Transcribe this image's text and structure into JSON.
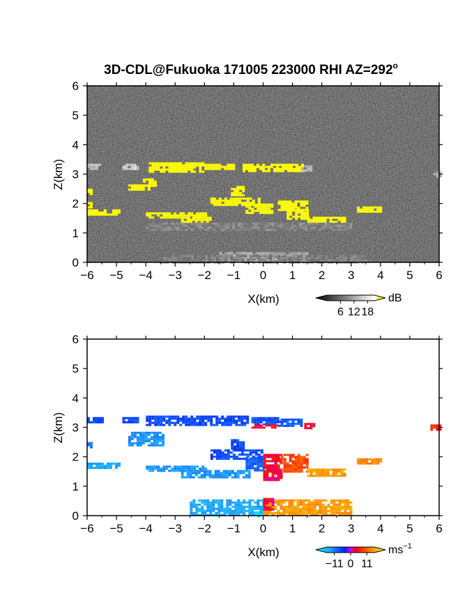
{
  "title": "3D-CDL@Fukuoka 171005 223000 RHI AZ=292",
  "title_degree_symbol": "o",
  "chart_data": [
    {
      "type": "heatmap",
      "name": "reflectivity",
      "xlabel": "X(km)",
      "ylabel": "Z(km)",
      "xlim": [
        -6,
        6
      ],
      "ylim": [
        0,
        6
      ],
      "x_ticks": [
        "-6",
        "-5",
        "-4",
        "-3",
        "-2",
        "-1",
        "0",
        "1",
        "2",
        "3",
        "4",
        "5",
        "6"
      ],
      "y_ticks": [
        "0",
        "1",
        "2",
        "3",
        "4",
        "5",
        "6"
      ],
      "colorbar": {
        "unit": "dB",
        "ticks": [
          6,
          12,
          18
        ],
        "tick_labels": [
          "6",
          "12",
          "18"
        ],
        "range": [
          0,
          21
        ]
      },
      "background_value_db": 3,
      "features": [
        {
          "x": [
            -6.0,
            -5.6
          ],
          "z": [
            3.15,
            3.35
          ],
          "value_db": 14
        },
        {
          "x": [
            -4.8,
            -4.3
          ],
          "z": [
            3.15,
            3.35
          ],
          "value_db": 16
        },
        {
          "x": [
            -3.9,
            -2.0
          ],
          "z": [
            3.1,
            3.4
          ],
          "value_db": 20
        },
        {
          "x": [
            -2.0,
            -1.0
          ],
          "z": [
            3.15,
            3.35
          ],
          "value_db": 20
        },
        {
          "x": [
            -0.7,
            1.3
          ],
          "z": [
            3.1,
            3.35
          ],
          "value_db": 20
        },
        {
          "x": [
            1.3,
            1.6
          ],
          "z": [
            3.15,
            3.3
          ],
          "value_db": 14
        },
        {
          "x": [
            -4.6,
            -3.9
          ],
          "z": [
            2.45,
            2.65
          ],
          "value_db": 20
        },
        {
          "x": [
            -4.1,
            -3.7
          ],
          "z": [
            2.6,
            2.85
          ],
          "value_db": 20
        },
        {
          "x": [
            -6.0,
            -5.9
          ],
          "z": [
            2.3,
            2.5
          ],
          "value_db": 20
        },
        {
          "x": [
            -6.0,
            -5.9
          ],
          "z": [
            1.85,
            2.05
          ],
          "value_db": 20
        },
        {
          "x": [
            -1.1,
            -0.7
          ],
          "z": [
            2.3,
            2.6
          ],
          "value_db": 20
        },
        {
          "x": [
            -1.8,
            -0.1
          ],
          "z": [
            1.95,
            2.2
          ],
          "value_db": 20
        },
        {
          "x": [
            -0.6,
            0.3
          ],
          "z": [
            1.7,
            2.0
          ],
          "value_db": 20
        },
        {
          "x": [
            0.5,
            1.5
          ],
          "z": [
            1.8,
            2.1
          ],
          "value_db": 20
        },
        {
          "x": [
            0.8,
            1.5
          ],
          "z": [
            1.45,
            1.8
          ],
          "value_db": 20
        },
        {
          "x": [
            1.5,
            2.8
          ],
          "z": [
            1.35,
            1.55
          ],
          "value_db": 20
        },
        {
          "x": [
            -6.0,
            -4.9
          ],
          "z": [
            1.6,
            1.8
          ],
          "value_db": 20
        },
        {
          "x": [
            -4.0,
            -2.0
          ],
          "z": [
            1.5,
            1.7
          ],
          "value_db": 20
        },
        {
          "x": [
            -2.8,
            -1.8
          ],
          "z": [
            1.35,
            1.55
          ],
          "value_db": 20
        },
        {
          "x": [
            3.2,
            4.0
          ],
          "z": [
            1.75,
            1.9
          ],
          "value_db": 20
        },
        {
          "x": [
            5.8,
            6.0
          ],
          "z": [
            2.95,
            3.1
          ],
          "value_db": 12
        },
        {
          "x": [
            -4.0,
            3.0
          ],
          "z": [
            1.1,
            1.35
          ],
          "value_db": 9
        },
        {
          "x": [
            -1.5,
            1.5
          ],
          "z": [
            0.0,
            0.35
          ],
          "value_db": 12
        },
        {
          "x": [
            -3.5,
            3.5
          ],
          "z": [
            0.0,
            0.25
          ],
          "value_db": 8
        }
      ]
    },
    {
      "type": "heatmap",
      "name": "doppler_velocity",
      "xlabel": "X(km)",
      "ylabel": "Z(km)",
      "xlim": [
        -6,
        6
      ],
      "ylim": [
        0,
        6
      ],
      "x_ticks": [
        "-6",
        "-5",
        "-4",
        "-3",
        "-2",
        "-1",
        "0",
        "1",
        "2",
        "3",
        "4",
        "5",
        "6"
      ],
      "y_ticks": [
        "0",
        "1",
        "2",
        "3",
        "4",
        "5",
        "6"
      ],
      "colorbar": {
        "unit": "ms",
        "unit_exponent": "-1",
        "ticks": [
          -11,
          0,
          11
        ],
        "tick_labels": [
          "−11",
          "0",
          "11"
        ],
        "range": [
          -16,
          16
        ]
      },
      "features": [
        {
          "x": [
            -6.0,
            -5.5
          ],
          "z": [
            3.15,
            3.35
          ],
          "velocity": -5
        },
        {
          "x": [
            -4.8,
            -4.3
          ],
          "z": [
            3.15,
            3.35
          ],
          "velocity": -5
        },
        {
          "x": [
            -4.0,
            -0.5
          ],
          "z": [
            3.1,
            3.4
          ],
          "velocity": -5
        },
        {
          "x": [
            -0.4,
            0.5
          ],
          "z": [
            3.1,
            3.35
          ],
          "velocity": -5
        },
        {
          "x": [
            -0.4,
            0.5
          ],
          "z": [
            3.0,
            3.1
          ],
          "velocity": 2
        },
        {
          "x": [
            0.5,
            1.3
          ],
          "z": [
            3.05,
            3.3
          ],
          "velocity": -6
        },
        {
          "x": [
            1.4,
            1.7
          ],
          "z": [
            3.0,
            3.15
          ],
          "velocity": 2
        },
        {
          "x": [
            -4.6,
            -3.4
          ],
          "z": [
            2.4,
            2.85
          ],
          "velocity": -9
        },
        {
          "x": [
            -6.0,
            -5.9
          ],
          "z": [
            2.3,
            2.5
          ],
          "velocity": -8
        },
        {
          "x": [
            -1.1,
            -0.7
          ],
          "z": [
            2.3,
            2.6
          ],
          "velocity": -5
        },
        {
          "x": [
            -1.8,
            0.0
          ],
          "z": [
            1.95,
            2.25
          ],
          "velocity": -5
        },
        {
          "x": [
            -0.6,
            0.0
          ],
          "z": [
            1.55,
            2.0
          ],
          "velocity": -6
        },
        {
          "x": [
            0.0,
            0.6
          ],
          "z": [
            1.2,
            2.1
          ],
          "velocity": 2
        },
        {
          "x": [
            0.6,
            1.5
          ],
          "z": [
            1.5,
            2.1
          ],
          "velocity": 5
        },
        {
          "x": [
            1.5,
            2.8
          ],
          "z": [
            1.35,
            1.6
          ],
          "velocity": 9
        },
        {
          "x": [
            3.2,
            4.0
          ],
          "z": [
            1.75,
            1.95
          ],
          "velocity": 8
        },
        {
          "x": [
            -6.0,
            -4.9
          ],
          "z": [
            1.6,
            1.8
          ],
          "velocity": -10
        },
        {
          "x": [
            -4.0,
            -2.0
          ],
          "z": [
            1.5,
            1.7
          ],
          "velocity": -9
        },
        {
          "x": [
            -2.8,
            -0.5
          ],
          "z": [
            1.3,
            1.55
          ],
          "velocity": -9
        },
        {
          "x": [
            5.7,
            6.0
          ],
          "z": [
            2.95,
            3.1
          ],
          "velocity": 3
        },
        {
          "x": [
            -2.5,
            0.0
          ],
          "z": [
            0.0,
            0.55
          ],
          "velocity": -10
        },
        {
          "x": [
            -0.3,
            0.0
          ],
          "z": [
            0.0,
            0.15
          ],
          "velocity": -14
        },
        {
          "x": [
            0.0,
            3.0
          ],
          "z": [
            0.0,
            0.55
          ],
          "velocity": 9
        },
        {
          "x": [
            0.0,
            0.3
          ],
          "z": [
            0.2,
            0.6
          ],
          "velocity": 2
        }
      ]
    }
  ]
}
